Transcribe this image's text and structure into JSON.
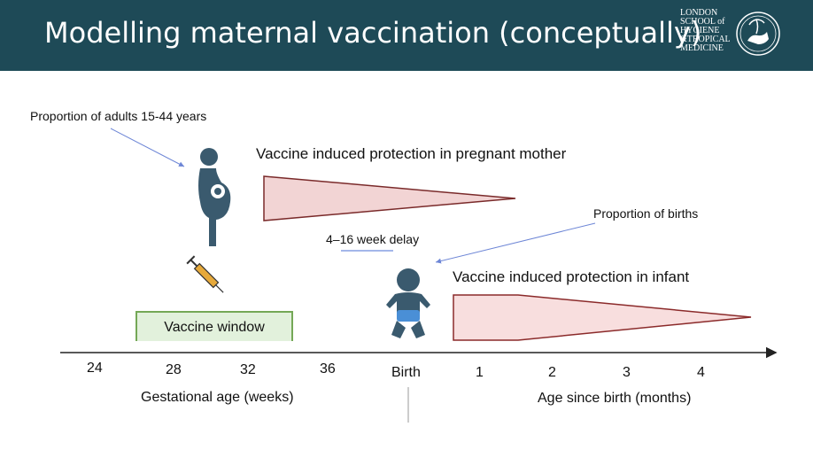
{
  "title": "Modelling maternal vaccination (conceptually)",
  "logo": {
    "lines": [
      "LONDON",
      "SCHOOL of",
      "HYGIENE",
      "&TROPICAL",
      "MEDICINE"
    ]
  },
  "annotations": {
    "adults": "Proportion of adults 15-44 years",
    "births": "Proportion of births",
    "mother_protection": "Vaccine induced protection in pregnant mother",
    "infant_protection": "Vaccine induced protection in infant",
    "delay": "4–16 week delay",
    "vaccine_window": "Vaccine window"
  },
  "axis": {
    "gestational_ticks": [
      "24",
      "28",
      "32",
      "36"
    ],
    "birth_label": "Birth",
    "month_ticks": [
      "1",
      "2",
      "3",
      "4"
    ],
    "gestational_label": "Gestational age (weeks)",
    "months_label": "Age since birth (months)"
  },
  "colors": {
    "header": "#1e4a57",
    "figure": "#3a5a6e",
    "protection_fill": "#f2d4d4",
    "protection_stroke": "#7a2a2a",
    "window_fill": "#e2f1dc",
    "window_stroke": "#74a856",
    "arrow": "#6d86d6"
  },
  "icons": [
    "pregnant-woman-icon",
    "syringe-icon",
    "baby-icon",
    "school-crest-icon"
  ]
}
